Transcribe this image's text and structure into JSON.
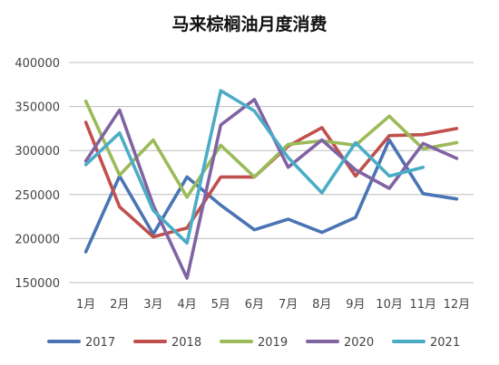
{
  "chart_data": {
    "type": "line",
    "title": "马来棕榈油月度消费",
    "categories": [
      "1月",
      "2月",
      "3月",
      "4月",
      "5月",
      "6月",
      "7月",
      "8月",
      "9月",
      "10月",
      "11月",
      "12月"
    ],
    "ylim": [
      150000,
      400000
    ],
    "yticks": [
      150000,
      200000,
      250000,
      300000,
      350000,
      400000
    ],
    "ytick_labels": [
      "150000",
      "200000",
      "250000",
      "300000",
      "350000",
      "400000"
    ],
    "grid": true,
    "legend_position": "bottom",
    "series": [
      {
        "name": "2017",
        "color": "#4a74b4",
        "values": [
          185000,
          271000,
          205000,
          270000,
          238000,
          210000,
          222000,
          207000,
          224000,
          312000,
          251000,
          245000
        ]
      },
      {
        "name": "2018",
        "color": "#c0504d",
        "values": [
          332000,
          236000,
          202000,
          212000,
          270000,
          270000,
          305000,
          326000,
          271000,
          317000,
          318000,
          325000
        ]
      },
      {
        "name": "2019",
        "color": "#9bbb59",
        "values": [
          356000,
          272000,
          312000,
          247000,
          306000,
          270000,
          307000,
          311000,
          306000,
          339000,
          302000,
          309000
        ]
      },
      {
        "name": "2020",
        "color": "#8064a2",
        "values": [
          288000,
          346000,
          238000,
          155000,
          329000,
          358000,
          281000,
          312000,
          278000,
          257000,
          308000,
          291000
        ]
      },
      {
        "name": "2021",
        "color": "#4bacc6",
        "values": [
          284000,
          320000,
          232000,
          195000,
          368000,
          345000,
          292000,
          252000,
          309000,
          271000,
          281000,
          null
        ]
      }
    ]
  }
}
